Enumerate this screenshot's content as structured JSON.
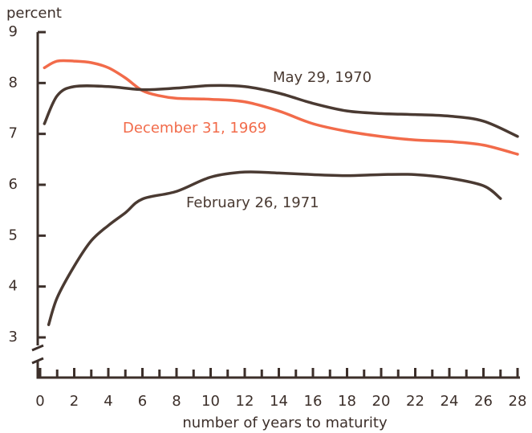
{
  "chart_data": {
    "type": "line",
    "ylabel": "percent",
    "xlabel": "number of years to maturity",
    "xlim": [
      0,
      28
    ],
    "xticks": [
      0,
      2,
      4,
      6,
      8,
      10,
      12,
      14,
      16,
      18,
      20,
      22,
      24,
      26,
      28
    ],
    "ylim": [
      3,
      9
    ],
    "yticks": [
      3,
      4,
      5,
      6,
      7,
      8,
      9
    ],
    "series": [
      {
        "name": "December 31, 1969",
        "color": "#f26b4a",
        "x": [
          0.25,
          1,
          2,
          3,
          4,
          5,
          6,
          7,
          8,
          10,
          12,
          14,
          16,
          18,
          20,
          22,
          24,
          26,
          28
        ],
        "values": [
          8.3,
          8.43,
          8.43,
          8.4,
          8.3,
          8.1,
          7.85,
          7.75,
          7.7,
          7.68,
          7.63,
          7.45,
          7.2,
          7.05,
          6.95,
          6.88,
          6.85,
          6.78,
          6.6
        ]
      },
      {
        "name": "May 29, 1970",
        "color": "#4a3a32",
        "x": [
          0.25,
          1,
          2,
          4,
          6,
          8,
          10,
          12,
          14,
          16,
          18,
          20,
          22,
          24,
          26,
          28
        ],
        "values": [
          7.2,
          7.75,
          7.93,
          7.93,
          7.87,
          7.9,
          7.95,
          7.93,
          7.8,
          7.6,
          7.45,
          7.4,
          7.38,
          7.35,
          7.25,
          6.95
        ]
      },
      {
        "name": "February 26, 1971",
        "color": "#4a3a32",
        "x": [
          0.5,
          1,
          2,
          3,
          4,
          5,
          6,
          8,
          10,
          12,
          14,
          16,
          18,
          20,
          22,
          24,
          26,
          27
        ],
        "values": [
          3.25,
          3.78,
          4.4,
          4.9,
          5.2,
          5.45,
          5.72,
          5.87,
          6.15,
          6.25,
          6.23,
          6.2,
          6.18,
          6.2,
          6.2,
          6.13,
          5.98,
          5.73
        ]
      }
    ]
  }
}
